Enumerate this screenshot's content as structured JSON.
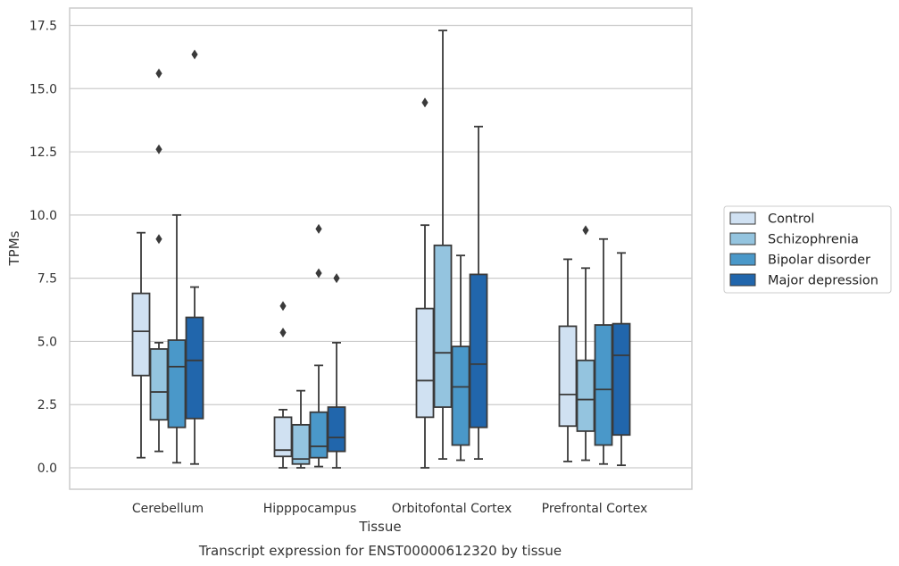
{
  "chart_data": {
    "type": "box",
    "title": "Transcript expression for ENST00000612320 by tissue",
    "xlabel": "Tissue",
    "ylabel": "TPMs",
    "ylim": [
      -0.8,
      18.2
    ],
    "yticks": [
      0.0,
      2.5,
      5.0,
      7.5,
      10.0,
      12.5,
      15.0,
      17.5
    ],
    "ytick_labels": [
      "0.0",
      "2.5",
      "5.0",
      "7.5",
      "10.0",
      "12.5",
      "15.0",
      "17.5"
    ],
    "grid": "horizontal",
    "legend_placement": "right",
    "categories": [
      "Cerebellum",
      "Hipppocampus",
      "Orbitofontal Cortex",
      "Prefrontal Cortex"
    ],
    "series": [
      {
        "name": "Control",
        "color": "#d0e1f2",
        "boxes": [
          {
            "whisker_low": 0.4,
            "q1": 3.65,
            "median": 5.4,
            "q3": 6.9,
            "whisker_high": 9.3,
            "outliers": []
          },
          {
            "whisker_low": 0.0,
            "q1": 0.45,
            "median": 0.7,
            "q3": 2.0,
            "whisker_high": 2.3,
            "outliers": [
              5.35,
              6.4
            ]
          },
          {
            "whisker_low": 0.0,
            "q1": 2.0,
            "median": 3.45,
            "q3": 6.3,
            "whisker_high": 9.6,
            "outliers": [
              14.45
            ]
          },
          {
            "whisker_low": 0.25,
            "q1": 1.65,
            "median": 2.9,
            "q3": 5.6,
            "whisker_high": 8.25,
            "outliers": []
          }
        ]
      },
      {
        "name": "Schizophrenia",
        "color": "#94c4df",
        "boxes": [
          {
            "whisker_low": 0.65,
            "q1": 1.9,
            "median": 3.0,
            "q3": 4.7,
            "whisker_high": 4.95,
            "outliers": [
              9.05,
              12.6,
              15.6
            ]
          },
          {
            "whisker_low": 0.0,
            "q1": 0.15,
            "median": 0.35,
            "q3": 1.7,
            "whisker_high": 3.05,
            "outliers": []
          },
          {
            "whisker_low": 0.35,
            "q1": 2.4,
            "median": 4.55,
            "q3": 8.8,
            "whisker_high": 17.3,
            "outliers": []
          },
          {
            "whisker_low": 0.3,
            "q1": 1.45,
            "median": 2.7,
            "q3": 4.25,
            "whisker_high": 7.9,
            "outliers": [
              9.4
            ]
          }
        ]
      },
      {
        "name": "Bipolar disorder",
        "color": "#4a98c9",
        "boxes": [
          {
            "whisker_low": 0.2,
            "q1": 1.6,
            "median": 4.0,
            "q3": 5.05,
            "whisker_high": 10.0,
            "outliers": []
          },
          {
            "whisker_low": 0.05,
            "q1": 0.4,
            "median": 0.85,
            "q3": 2.2,
            "whisker_high": 4.05,
            "outliers": [
              7.7,
              9.45
            ]
          },
          {
            "whisker_low": 0.3,
            "q1": 0.9,
            "median": 3.2,
            "q3": 4.8,
            "whisker_high": 8.4,
            "outliers": []
          },
          {
            "whisker_low": 0.15,
            "q1": 0.9,
            "median": 3.1,
            "q3": 5.65,
            "whisker_high": 9.05,
            "outliers": []
          }
        ]
      },
      {
        "name": "Major depression",
        "color": "#2166ac",
        "boxes": [
          {
            "whisker_low": 0.15,
            "q1": 1.95,
            "median": 4.25,
            "q3": 5.95,
            "whisker_high": 7.15,
            "outliers": [
              16.35
            ]
          },
          {
            "whisker_low": 0.0,
            "q1": 0.65,
            "median": 1.2,
            "q3": 2.4,
            "whisker_high": 4.95,
            "outliers": [
              7.5
            ]
          },
          {
            "whisker_low": 0.35,
            "q1": 1.6,
            "median": 4.1,
            "q3": 7.65,
            "whisker_high": 13.5,
            "outliers": []
          },
          {
            "whisker_low": 0.1,
            "q1": 1.3,
            "median": 4.45,
            "q3": 5.7,
            "whisker_high": 8.5,
            "outliers": []
          }
        ]
      }
    ]
  }
}
